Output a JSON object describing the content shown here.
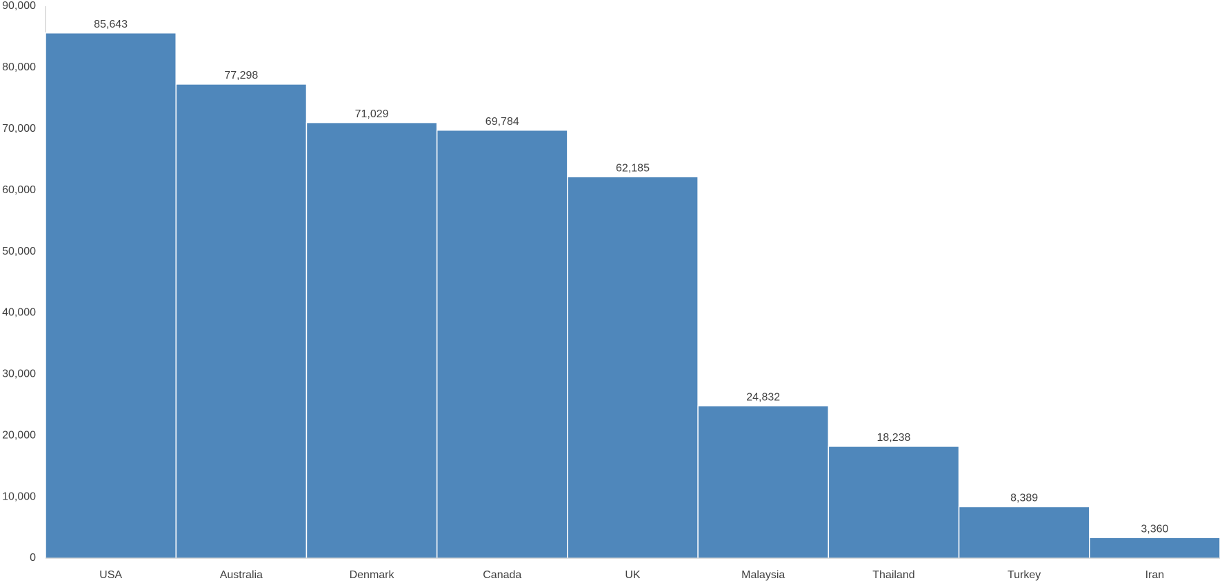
{
  "chart_data": {
    "type": "bar",
    "categories": [
      "USA",
      "Australia",
      "Denmark",
      "Canada",
      "UK",
      "Malaysia",
      "Thailand",
      "Turkey",
      "Iran"
    ],
    "values": [
      85643,
      77298,
      71029,
      69784,
      62185,
      24832,
      18238,
      8389,
      3360
    ],
    "value_labels": [
      "85,643",
      "77,298",
      "71,029",
      "69,784",
      "62,185",
      "24,832",
      "18,238",
      "8,389",
      "3,360"
    ],
    "color": "#4f87bb",
    "ylim": [
      0,
      90000
    ],
    "yticks": [
      0,
      {
        "value": 10000,
        "label": "10,000"
      },
      {
        "value": 20000,
        "label": "20,000"
      },
      {
        "value": 30000,
        "label": "30,000"
      },
      {
        "value": 40000,
        "label": "40,000"
      },
      {
        "value": 50000,
        "label": "50,000"
      },
      {
        "value": 60000,
        "label": "60,000"
      },
      {
        "value": 70000,
        "label": "70,000"
      },
      {
        "value": 80000,
        "label": "80,000"
      },
      {
        "value": 90000,
        "label": "90,000"
      }
    ],
    "grid": false
  }
}
